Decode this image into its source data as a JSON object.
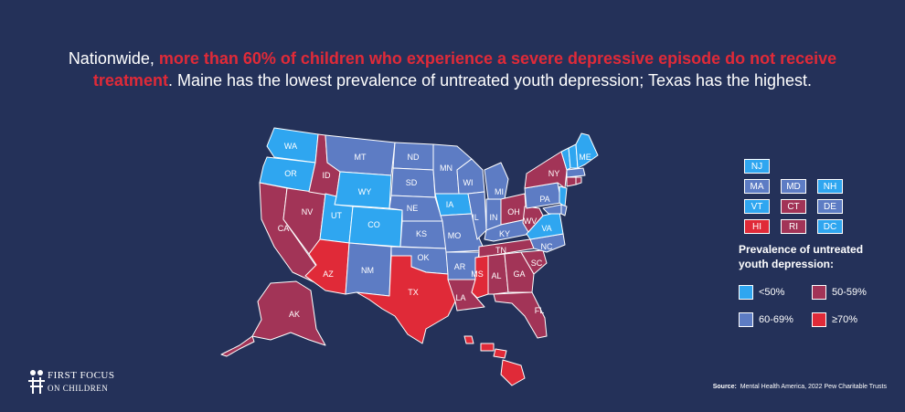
{
  "headline": {
    "part1": "Nationwide, ",
    "highlight": "more than 60% of children who experience a severe depressive episode do not receive treatment",
    "part2": ". Maine has the lowest prevalence of untreated youth depression; Texas has the highest."
  },
  "colors": {
    "lt50": "#2fa6f0",
    "c50_59": "#a23457",
    "c60_69": "#5d7cc4",
    "gte70": "#e02a38",
    "background": "#243159",
    "highlight_text": "#e02a38"
  },
  "legend": {
    "title": "Prevalence of untreated youth depression:",
    "items": [
      {
        "label": "<50%",
        "color_key": "lt50"
      },
      {
        "label": "50-59%",
        "color_key": "c50_59"
      },
      {
        "label": "60-69%",
        "color_key": "c60_69"
      },
      {
        "label": "≥70%",
        "color_key": "gte70"
      }
    ]
  },
  "small_states": [
    {
      "abbr": "NJ",
      "category": "lt50"
    },
    {
      "abbr": "MA",
      "category": "c60_69"
    },
    {
      "abbr": "MD",
      "category": "c60_69"
    },
    {
      "abbr": "NH",
      "category": "lt50"
    },
    {
      "abbr": "VT",
      "category": "lt50"
    },
    {
      "abbr": "CT",
      "category": "c50_59"
    },
    {
      "abbr": "DE",
      "category": "c60_69"
    },
    {
      "abbr": "HI",
      "category": "gte70"
    },
    {
      "abbr": "RI",
      "category": "c50_59"
    },
    {
      "abbr": "DC",
      "category": "lt50"
    }
  ],
  "states": [
    {
      "abbr": "WA",
      "category": "lt50"
    },
    {
      "abbr": "OR",
      "category": "lt50"
    },
    {
      "abbr": "CA",
      "category": "c50_59"
    },
    {
      "abbr": "NV",
      "category": "c50_59"
    },
    {
      "abbr": "ID",
      "category": "c50_59"
    },
    {
      "abbr": "MT",
      "category": "c60_69"
    },
    {
      "abbr": "WY",
      "category": "lt50"
    },
    {
      "abbr": "UT",
      "category": "lt50"
    },
    {
      "abbr": "CO",
      "category": "lt50"
    },
    {
      "abbr": "AZ",
      "category": "gte70"
    },
    {
      "abbr": "NM",
      "category": "c60_69"
    },
    {
      "abbr": "ND",
      "category": "c60_69"
    },
    {
      "abbr": "SD",
      "category": "c60_69"
    },
    {
      "abbr": "NE",
      "category": "c60_69"
    },
    {
      "abbr": "KS",
      "category": "c60_69"
    },
    {
      "abbr": "OK",
      "category": "c60_69"
    },
    {
      "abbr": "TX",
      "category": "gte70"
    },
    {
      "abbr": "MN",
      "category": "c60_69"
    },
    {
      "abbr": "IA",
      "category": "lt50"
    },
    {
      "abbr": "MO",
      "category": "c60_69"
    },
    {
      "abbr": "AR",
      "category": "c60_69"
    },
    {
      "abbr": "LA",
      "category": "c50_59"
    },
    {
      "abbr": "WI",
      "category": "c60_69"
    },
    {
      "abbr": "IL",
      "category": "c60_69"
    },
    {
      "abbr": "MI",
      "category": "c60_69"
    },
    {
      "abbr": "IN",
      "category": "c60_69"
    },
    {
      "abbr": "OH",
      "category": "c50_59"
    },
    {
      "abbr": "KY",
      "category": "c60_69"
    },
    {
      "abbr": "TN",
      "category": "c50_59"
    },
    {
      "abbr": "MS",
      "category": "gte70"
    },
    {
      "abbr": "AL",
      "category": "c50_59"
    },
    {
      "abbr": "GA",
      "category": "c50_59"
    },
    {
      "abbr": "FL",
      "category": "c50_59"
    },
    {
      "abbr": "SC",
      "category": "c50_59"
    },
    {
      "abbr": "NC",
      "category": "c60_69"
    },
    {
      "abbr": "VA",
      "category": "lt50"
    },
    {
      "abbr": "WV",
      "category": "c50_59"
    },
    {
      "abbr": "PA",
      "category": "c60_69"
    },
    {
      "abbr": "NY",
      "category": "c50_59"
    },
    {
      "abbr": "ME",
      "category": "lt50"
    },
    {
      "abbr": "AK",
      "category": "c50_59"
    }
  ],
  "logo": {
    "line1": "FIRST FOCUS",
    "line2": "ON CHILDREN"
  },
  "source": {
    "label": "Source:",
    "text": "Mental Health America, 2022 Pew Charitable Trusts"
  }
}
